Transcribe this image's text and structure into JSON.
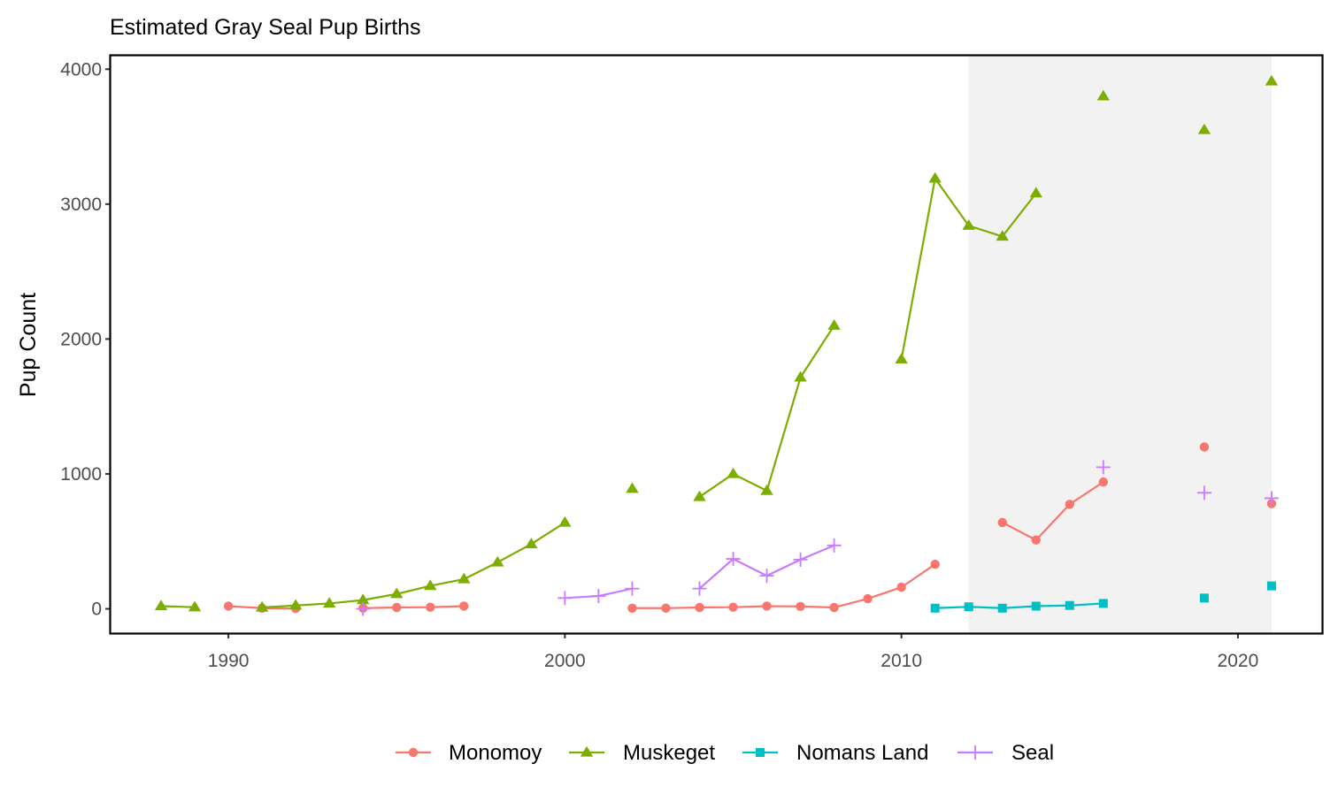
{
  "chart_data": {
    "type": "line",
    "title": "Estimated Gray Seal Pup Births",
    "xlabel": "",
    "ylabel": "Pup Count",
    "xlim": [
      1986.5,
      2022.5
    ],
    "ylim": [
      -180,
      4100
    ],
    "x_ticks": [
      1990,
      2000,
      2010,
      2020
    ],
    "y_ticks": [
      0,
      1000,
      2000,
      3000,
      4000
    ],
    "shaded_x_range": [
      2012,
      2021
    ],
    "grid": false,
    "legend_position": "bottom",
    "series": [
      {
        "name": "Monomoy",
        "color": "#F8766D",
        "marker": "circle",
        "segments": [
          [
            [
              1990,
              20
            ],
            [
              1991,
              5
            ],
            [
              1992,
              2
            ]
          ],
          [
            [
              1994,
              5
            ],
            [
              1995,
              10
            ],
            [
              1996,
              12
            ],
            [
              1997,
              20
            ]
          ],
          [
            [
              2002,
              5
            ],
            [
              2003,
              5
            ],
            [
              2004,
              10
            ],
            [
              2005,
              12
            ],
            [
              2006,
              20
            ],
            [
              2007,
              18
            ],
            [
              2008,
              10
            ],
            [
              2009,
              75
            ],
            [
              2010,
              160
            ],
            [
              2011,
              330
            ]
          ],
          [
            [
              2013,
              640
            ],
            [
              2014,
              510
            ],
            [
              2015,
              775
            ],
            [
              2016,
              940
            ]
          ],
          [
            [
              2019,
              1200
            ]
          ],
          [
            [
              2021,
              780
            ]
          ]
        ]
      },
      {
        "name": "Muskeget",
        "color": "#7CAE00",
        "marker": "triangle",
        "segments": [
          [
            [
              1988,
              20
            ],
            [
              1989,
              12
            ]
          ],
          [
            [
              1991,
              10
            ],
            [
              1992,
              25
            ],
            [
              1993,
              40
            ],
            [
              1994,
              65
            ],
            [
              1995,
              110
            ],
            [
              1996,
              170
            ],
            [
              1997,
              220
            ],
            [
              1998,
              345
            ],
            [
              1999,
              480
            ],
            [
              2000,
              640
            ]
          ],
          [
            [
              2002,
              890
            ]
          ],
          [
            [
              2004,
              830
            ],
            [
              2005,
              1000
            ],
            [
              2006,
              875
            ],
            [
              2007,
              1715
            ],
            [
              2008,
              2100
            ]
          ],
          [
            [
              2010,
              1850
            ],
            [
              2011,
              3190
            ],
            [
              2012,
              2840
            ],
            [
              2013,
              2760
            ],
            [
              2014,
              3080
            ]
          ],
          [
            [
              2016,
              3800
            ]
          ],
          [
            [
              2019,
              3550
            ]
          ],
          [
            [
              2021,
              3910
            ]
          ]
        ]
      },
      {
        "name": "Nomans Land",
        "color": "#00BFC4",
        "marker": "square",
        "segments": [
          [
            [
              2011,
              5
            ],
            [
              2012,
              15
            ],
            [
              2013,
              5
            ],
            [
              2014,
              20
            ],
            [
              2015,
              25
            ],
            [
              2016,
              40
            ]
          ],
          [
            [
              2019,
              80
            ]
          ],
          [
            [
              2021,
              170
            ]
          ]
        ]
      },
      {
        "name": "Seal",
        "color": "#C77CFF",
        "marker": "plus",
        "segments": [
          [
            [
              1994,
              0
            ]
          ],
          [
            [
              2000,
              80
            ],
            [
              2001,
              95
            ],
            [
              2002,
              150
            ]
          ],
          [
            [
              2004,
              150
            ],
            [
              2005,
              370
            ],
            [
              2006,
              245
            ],
            [
              2007,
              365
            ],
            [
              2008,
              470
            ]
          ],
          [
            [
              2016,
              1050
            ]
          ],
          [
            [
              2019,
              860
            ]
          ],
          [
            [
              2021,
              820
            ]
          ]
        ]
      }
    ]
  }
}
